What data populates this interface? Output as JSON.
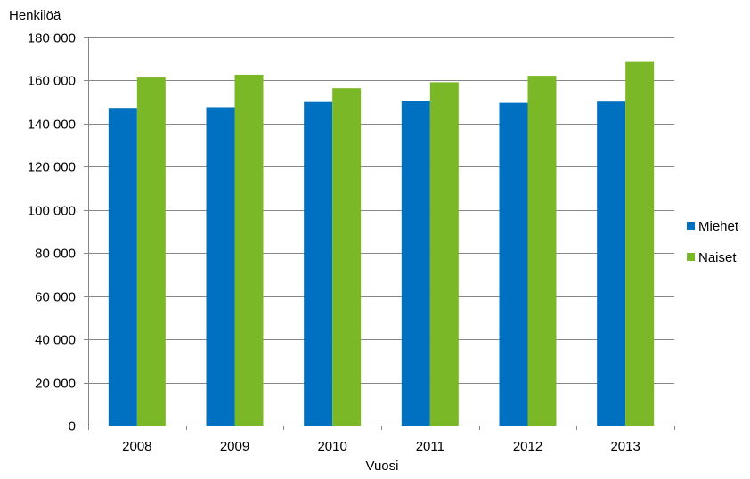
{
  "chart_data": {
    "type": "bar",
    "title": "",
    "xlabel": "Vuosi",
    "ylabel": "Henkilöä",
    "categories": [
      "2008",
      "2009",
      "2010",
      "2011",
      "2012",
      "2013"
    ],
    "series": [
      {
        "name": "Miehet",
        "color": "#0070C0",
        "values": [
          147300,
          147600,
          150000,
          150600,
          149600,
          150200
        ]
      },
      {
        "name": "Naiset",
        "color": "#7AB828",
        "values": [
          161400,
          162700,
          156400,
          159200,
          162200,
          168600
        ]
      }
    ],
    "ylim": [
      0,
      180000
    ],
    "yticks": [
      0,
      20000,
      40000,
      60000,
      80000,
      100000,
      120000,
      140000,
      160000,
      180000
    ],
    "ytick_labels": [
      "0",
      "20 000",
      "40 000",
      "60 000",
      "80 000",
      "100 000",
      "120 000",
      "140 000",
      "160 000",
      "180 000"
    ],
    "grid": true,
    "legend_position": "right"
  }
}
